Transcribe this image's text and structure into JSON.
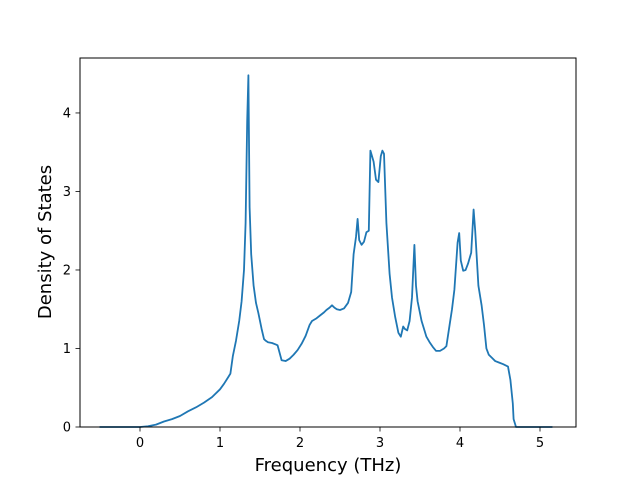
{
  "chart_data": {
    "type": "line",
    "title": "",
    "xlabel": "Frequency (THz)",
    "ylabel": "Density of States",
    "xlim": [
      -0.75,
      5.45
    ],
    "ylim": [
      0,
      4.7
    ],
    "xticks": [
      0,
      1,
      2,
      3,
      4,
      5
    ],
    "yticks": [
      0,
      1,
      2,
      3,
      4
    ],
    "grid": false,
    "legend": "none",
    "color": "#1f77b4",
    "series": [
      {
        "x": [
          -0.5,
          -0.3,
          -0.1,
          0.0,
          0.1,
          0.2,
          0.3,
          0.4,
          0.5,
          0.6,
          0.7,
          0.8,
          0.9,
          1.0,
          1.05,
          1.1,
          1.13,
          1.16,
          1.2,
          1.24,
          1.27,
          1.3,
          1.32,
          1.34,
          1.355,
          1.37,
          1.39,
          1.42,
          1.45,
          1.48,
          1.52,
          1.55,
          1.57,
          1.6,
          1.65,
          1.7,
          1.72,
          1.77,
          1.82,
          1.87,
          1.92,
          1.97,
          2.02,
          2.07,
          2.12,
          2.15,
          2.2,
          2.25,
          2.3,
          2.33,
          2.37,
          2.4,
          2.43,
          2.46,
          2.5,
          2.55,
          2.6,
          2.64,
          2.67,
          2.7,
          2.72,
          2.74,
          2.77,
          2.8,
          2.83,
          2.86,
          2.88,
          2.92,
          2.95,
          2.98,
          3.01,
          3.03,
          3.05,
          3.08,
          3.12,
          3.15,
          3.19,
          3.23,
          3.26,
          3.29,
          3.31,
          3.34,
          3.37,
          3.4,
          3.43,
          3.45,
          3.47,
          3.5,
          3.52,
          3.55,
          3.58,
          3.62,
          3.66,
          3.7,
          3.75,
          3.8,
          3.83,
          3.87,
          3.9,
          3.93,
          3.97,
          3.99,
          4.01,
          4.04,
          4.07,
          4.1,
          4.14,
          4.17,
          4.19,
          4.21,
          4.23,
          4.27,
          4.3,
          4.33,
          4.36,
          4.4,
          4.44,
          4.49,
          4.54,
          4.6,
          4.63,
          4.66,
          4.67,
          4.7,
          5.0,
          5.15
        ],
        "y": [
          0.0,
          0.0,
          0.0,
          0.0,
          0.01,
          0.03,
          0.07,
          0.1,
          0.14,
          0.2,
          0.25,
          0.31,
          0.38,
          0.48,
          0.55,
          0.63,
          0.68,
          0.9,
          1.1,
          1.35,
          1.6,
          2.0,
          2.6,
          3.9,
          4.48,
          2.8,
          2.2,
          1.8,
          1.58,
          1.45,
          1.25,
          1.12,
          1.1,
          1.08,
          1.07,
          1.05,
          1.04,
          0.85,
          0.84,
          0.87,
          0.92,
          0.98,
          1.06,
          1.16,
          1.3,
          1.35,
          1.38,
          1.42,
          1.46,
          1.49,
          1.52,
          1.55,
          1.52,
          1.5,
          1.49,
          1.51,
          1.58,
          1.72,
          2.2,
          2.42,
          2.65,
          2.38,
          2.32,
          2.36,
          2.48,
          2.5,
          3.52,
          3.38,
          3.15,
          3.12,
          3.45,
          3.52,
          3.48,
          2.6,
          1.95,
          1.65,
          1.4,
          1.2,
          1.15,
          1.28,
          1.25,
          1.23,
          1.35,
          1.65,
          2.32,
          1.8,
          1.6,
          1.45,
          1.35,
          1.25,
          1.15,
          1.08,
          1.02,
          0.97,
          0.97,
          1.0,
          1.03,
          1.3,
          1.5,
          1.75,
          2.35,
          2.47,
          2.12,
          1.99,
          2.0,
          2.08,
          2.22,
          2.77,
          2.5,
          2.15,
          1.8,
          1.55,
          1.3,
          1.0,
          0.92,
          0.88,
          0.84,
          0.82,
          0.8,
          0.77,
          0.6,
          0.3,
          0.1,
          0.0,
          0.0,
          0.0
        ]
      }
    ]
  }
}
